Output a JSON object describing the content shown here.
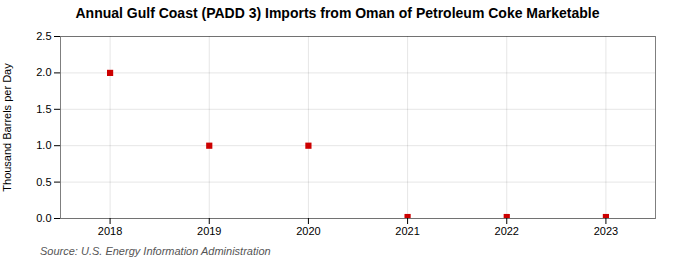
{
  "chart_data": {
    "type": "scatter",
    "title": "Annual Gulf Coast (PADD 3) Imports from Oman of Petroleum Coke Marketable",
    "ylabel": "Thousand Barrels per Day",
    "caption": "Source: U.S. Energy Information Administration",
    "x": [
      2018,
      2019,
      2020,
      2021,
      2022,
      2023
    ],
    "values": [
      2.0,
      1.0,
      1.0,
      0.02,
      0.02,
      0.02
    ],
    "color": "#cc0000",
    "marker": "square",
    "xlim": [
      2017.5,
      2023.5
    ],
    "xticks": [
      2018,
      2019,
      2020,
      2021,
      2022,
      2023
    ],
    "ylim": [
      0,
      2.5
    ],
    "yticks": [
      {
        "value": 0,
        "label": "0.0"
      },
      0.5,
      {
        "value": 1,
        "label": "1.0"
      },
      1.5,
      {
        "value": 2,
        "label": "2.0"
      },
      2.5
    ],
    "grid": true
  }
}
